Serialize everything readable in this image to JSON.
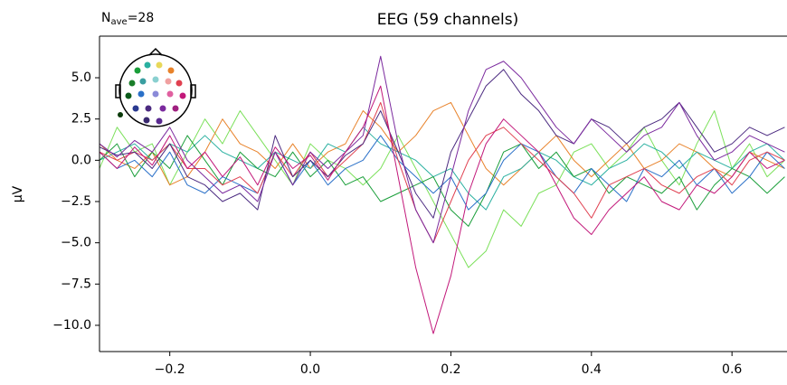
{
  "chart_data": {
    "type": "line",
    "title": "EEG (59 channels)",
    "annotation": [
      "N",
      "ave",
      "=28"
    ],
    "ylabel": "µV",
    "xlim": [
      -0.3,
      0.677
    ],
    "ylim": [
      -11.59,
      7.52
    ],
    "xticks": [
      {
        "value": -0.2,
        "label": "−0.2"
      },
      {
        "value": 0,
        "label": "0.0"
      },
      {
        "value": 0.2,
        "label": "0.2"
      },
      {
        "value": 0.4,
        "label": "0.4"
      },
      {
        "value": 0.6,
        "label": "0.6"
      }
    ],
    "yticks": [
      {
        "value": 5,
        "label": "5.0"
      },
      {
        "value": 2.5,
        "label": "2.5"
      },
      {
        "value": 0,
        "label": "0.0"
      },
      {
        "value": -2.5,
        "label": "−2.5"
      },
      {
        "value": -5,
        "label": "−5.0"
      },
      {
        "value": -7.5,
        "label": "−7.5"
      },
      {
        "value": -10,
        "label": "−10.0"
      }
    ],
    "grid": false,
    "x": [
      -0.3,
      -0.275,
      -0.25,
      -0.225,
      -0.2,
      -0.175,
      -0.15,
      -0.125,
      -0.1,
      -0.075,
      -0.05,
      -0.025,
      0,
      0.025,
      0.05,
      0.075,
      0.1,
      0.125,
      0.15,
      0.175,
      0.2,
      0.225,
      0.25,
      0.275,
      0.3,
      0.325,
      0.35,
      0.375,
      0.4,
      0.425,
      0.45,
      0.475,
      0.5,
      0.525,
      0.55,
      0.575,
      0.6,
      0.625,
      0.65,
      0.675
    ],
    "series": [
      {
        "color": "#7be05a",
        "values": [
          -0.5,
          2.0,
          0.5,
          1.0,
          -1.5,
          0.5,
          2.5,
          1.0,
          3.0,
          1.5,
          0.0,
          -1.5,
          1.0,
          0.0,
          -0.5,
          -1.5,
          -0.5,
          1.5,
          -0.5,
          -2.5,
          -4.5,
          -6.5,
          -5.5,
          -3.0,
          -4.0,
          -2.0,
          -1.5,
          0.5,
          1.0,
          -0.5,
          0.5,
          2.0,
          0.0,
          -1.5,
          1.0,
          3.0,
          -0.5,
          1.0,
          -1.0,
          0.0
        ]
      },
      {
        "color": "#e8822a",
        "values": [
          1.0,
          0.0,
          -0.5,
          0.5,
          -1.5,
          -1.0,
          0.5,
          2.5,
          1.0,
          0.5,
          -0.5,
          1.0,
          -0.5,
          0.5,
          1.0,
          3.0,
          2.0,
          0.5,
          1.5,
          3.0,
          3.5,
          1.5,
          -0.5,
          -1.5,
          -0.5,
          0.5,
          1.5,
          0.0,
          -1.0,
          0.0,
          1.0,
          -0.5,
          0.0,
          1.0,
          0.5,
          -0.5,
          -1.0,
          0.5,
          0.0,
          -0.5
        ]
      },
      {
        "color": "#2ab0a0",
        "values": [
          0.0,
          0.5,
          1.0,
          0.0,
          1.0,
          0.5,
          1.5,
          0.5,
          0.0,
          -0.5,
          0.5,
          0.0,
          -0.5,
          1.0,
          0.5,
          2.0,
          1.0,
          0.5,
          0.0,
          -1.0,
          -0.5,
          -2.0,
          -3.0,
          -1.0,
          -0.5,
          0.5,
          0.0,
          -1.0,
          -1.5,
          -0.5,
          0.0,
          1.0,
          0.5,
          -0.5,
          0.5,
          0.0,
          -0.5,
          0.5,
          1.0,
          0.0
        ]
      },
      {
        "color": "#1a9e3a",
        "values": [
          0.0,
          1.0,
          -1.0,
          0.5,
          -0.5,
          1.5,
          0.0,
          -1.5,
          0.5,
          -0.5,
          -1.0,
          0.5,
          -1.0,
          0.0,
          -1.5,
          -1.0,
          -2.5,
          -2.0,
          -1.5,
          -1.0,
          -3.0,
          -4.0,
          -2.0,
          0.5,
          1.0,
          -0.5,
          0.5,
          -1.0,
          -0.5,
          -2.0,
          -1.0,
          -1.5,
          -2.0,
          -1.0,
          -3.0,
          -1.5,
          -0.5,
          -1.0,
          -2.0,
          -1.0
        ]
      },
      {
        "color": "#2a70c8",
        "values": [
          0.5,
          -0.5,
          0.0,
          -1.0,
          0.5,
          -1.5,
          -2.0,
          -1.0,
          -1.5,
          -2.0,
          0.5,
          -1.5,
          0.0,
          -1.5,
          -0.5,
          0.0,
          1.5,
          0.0,
          -1.0,
          -2.0,
          -1.0,
          -3.0,
          -2.0,
          0.0,
          1.0,
          0.5,
          -1.0,
          -2.0,
          -0.5,
          -1.5,
          -2.5,
          -0.5,
          -1.0,
          0.0,
          -1.5,
          -0.5,
          -2.0,
          -1.0,
          0.5,
          -0.5
        ]
      },
      {
        "color": "#e04050",
        "values": [
          0.5,
          0.0,
          0.5,
          0.0,
          1.0,
          -0.5,
          -0.5,
          -1.5,
          -1.0,
          -2.0,
          0.5,
          -1.0,
          0.5,
          -1.0,
          0.0,
          1.0,
          3.5,
          0.0,
          -3.0,
          -5.0,
          -2.5,
          0.0,
          1.5,
          2.0,
          1.0,
          0.0,
          -1.0,
          -2.0,
          -3.5,
          -1.5,
          -1.0,
          -0.5,
          -1.5,
          -2.0,
          -1.0,
          -0.5,
          -1.5,
          0.0,
          0.5,
          0.0
        ]
      },
      {
        "color": "#4b2a80",
        "values": [
          0.8,
          0.3,
          0.5,
          -0.5,
          1.0,
          -1.0,
          -1.5,
          -2.5,
          -2.0,
          -3.0,
          1.5,
          -1.0,
          0.0,
          -1.0,
          0.3,
          1.0,
          3.0,
          0.5,
          -2.0,
          -3.5,
          0.5,
          2.5,
          4.5,
          5.5,
          4.0,
          3.0,
          1.5,
          1.0,
          2.5,
          2.0,
          1.0,
          2.0,
          2.5,
          3.5,
          2.0,
          0.5,
          1.0,
          2.0,
          1.5,
          2.0
        ]
      },
      {
        "color": "#7b2a9e",
        "values": [
          1.0,
          0.2,
          1.2,
          0.5,
          2.0,
          0.0,
          -1.0,
          -2.0,
          -1.5,
          -2.5,
          0.5,
          -1.5,
          0.5,
          -0.5,
          0.5,
          1.5,
          6.3,
          1.0,
          -3.0,
          -5.0,
          -1.0,
          3.0,
          5.5,
          6.0,
          5.0,
          3.5,
          2.0,
          1.0,
          2.5,
          1.5,
          0.5,
          1.5,
          2.0,
          3.5,
          1.5,
          0.0,
          0.5,
          1.5,
          1.0,
          0.5
        ]
      },
      {
        "color": "#c2187a",
        "values": [
          0.5,
          -0.5,
          0.8,
          -0.3,
          1.5,
          -0.5,
          0.5,
          -1.0,
          0.2,
          -1.5,
          0.8,
          -0.5,
          0.3,
          -1.2,
          0.5,
          2.0,
          4.5,
          -1.0,
          -6.5,
          -10.5,
          -7.0,
          -2.0,
          1.0,
          2.5,
          1.5,
          0.5,
          -1.5,
          -3.5,
          -4.5,
          -3.0,
          -2.0,
          -1.0,
          -2.5,
          -3.0,
          -1.5,
          -2.0,
          -1.0,
          0.5,
          -0.5,
          0.0
        ]
      }
    ]
  }
}
